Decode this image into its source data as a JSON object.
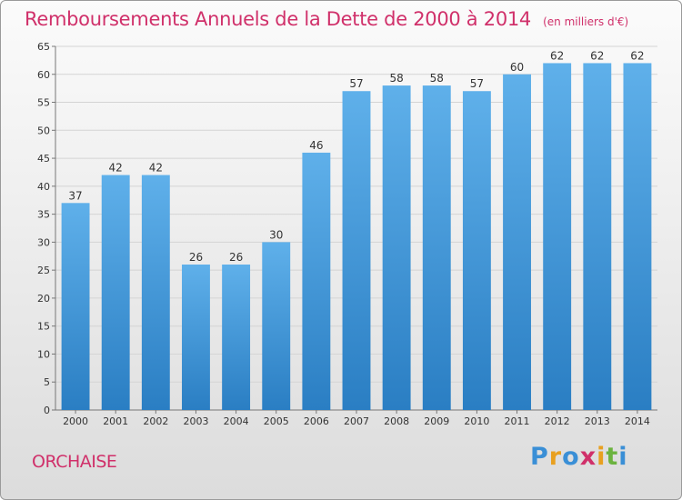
{
  "chart_data": {
    "type": "bar",
    "title": "Remboursements Annuels de la Dette de 2000 à 2014",
    "subtitle": "(en milliers d'€)",
    "categories": [
      "2000",
      "2001",
      "2002",
      "2003",
      "2004",
      "2005",
      "2006",
      "2007",
      "2008",
      "2009",
      "2010",
      "2011",
      "2012",
      "2013",
      "2014"
    ],
    "values": [
      37,
      42,
      42,
      26,
      26,
      30,
      46,
      57,
      58,
      58,
      57,
      60,
      62,
      62,
      62
    ],
    "ylim": [
      0,
      65
    ],
    "yticks": [
      0,
      5,
      10,
      15,
      20,
      25,
      30,
      35,
      40,
      45,
      50,
      55,
      60,
      65
    ],
    "xlabel": "",
    "ylabel": "",
    "grid": true,
    "colors": {
      "bar_top": "#5fb0ea",
      "bar_bottom": "#2a7ec3",
      "title": "#d0306a"
    }
  },
  "footer": {
    "location": "ORCHAISE"
  },
  "brand": {
    "letters": [
      "P",
      "r",
      "o",
      "x",
      "i",
      "t",
      "i"
    ],
    "colors": [
      "#3a8fd6",
      "#e8a020",
      "#3a8fd6",
      "#d0306a",
      "#e8a020",
      "#6cb33f",
      "#3a8fd6"
    ]
  }
}
